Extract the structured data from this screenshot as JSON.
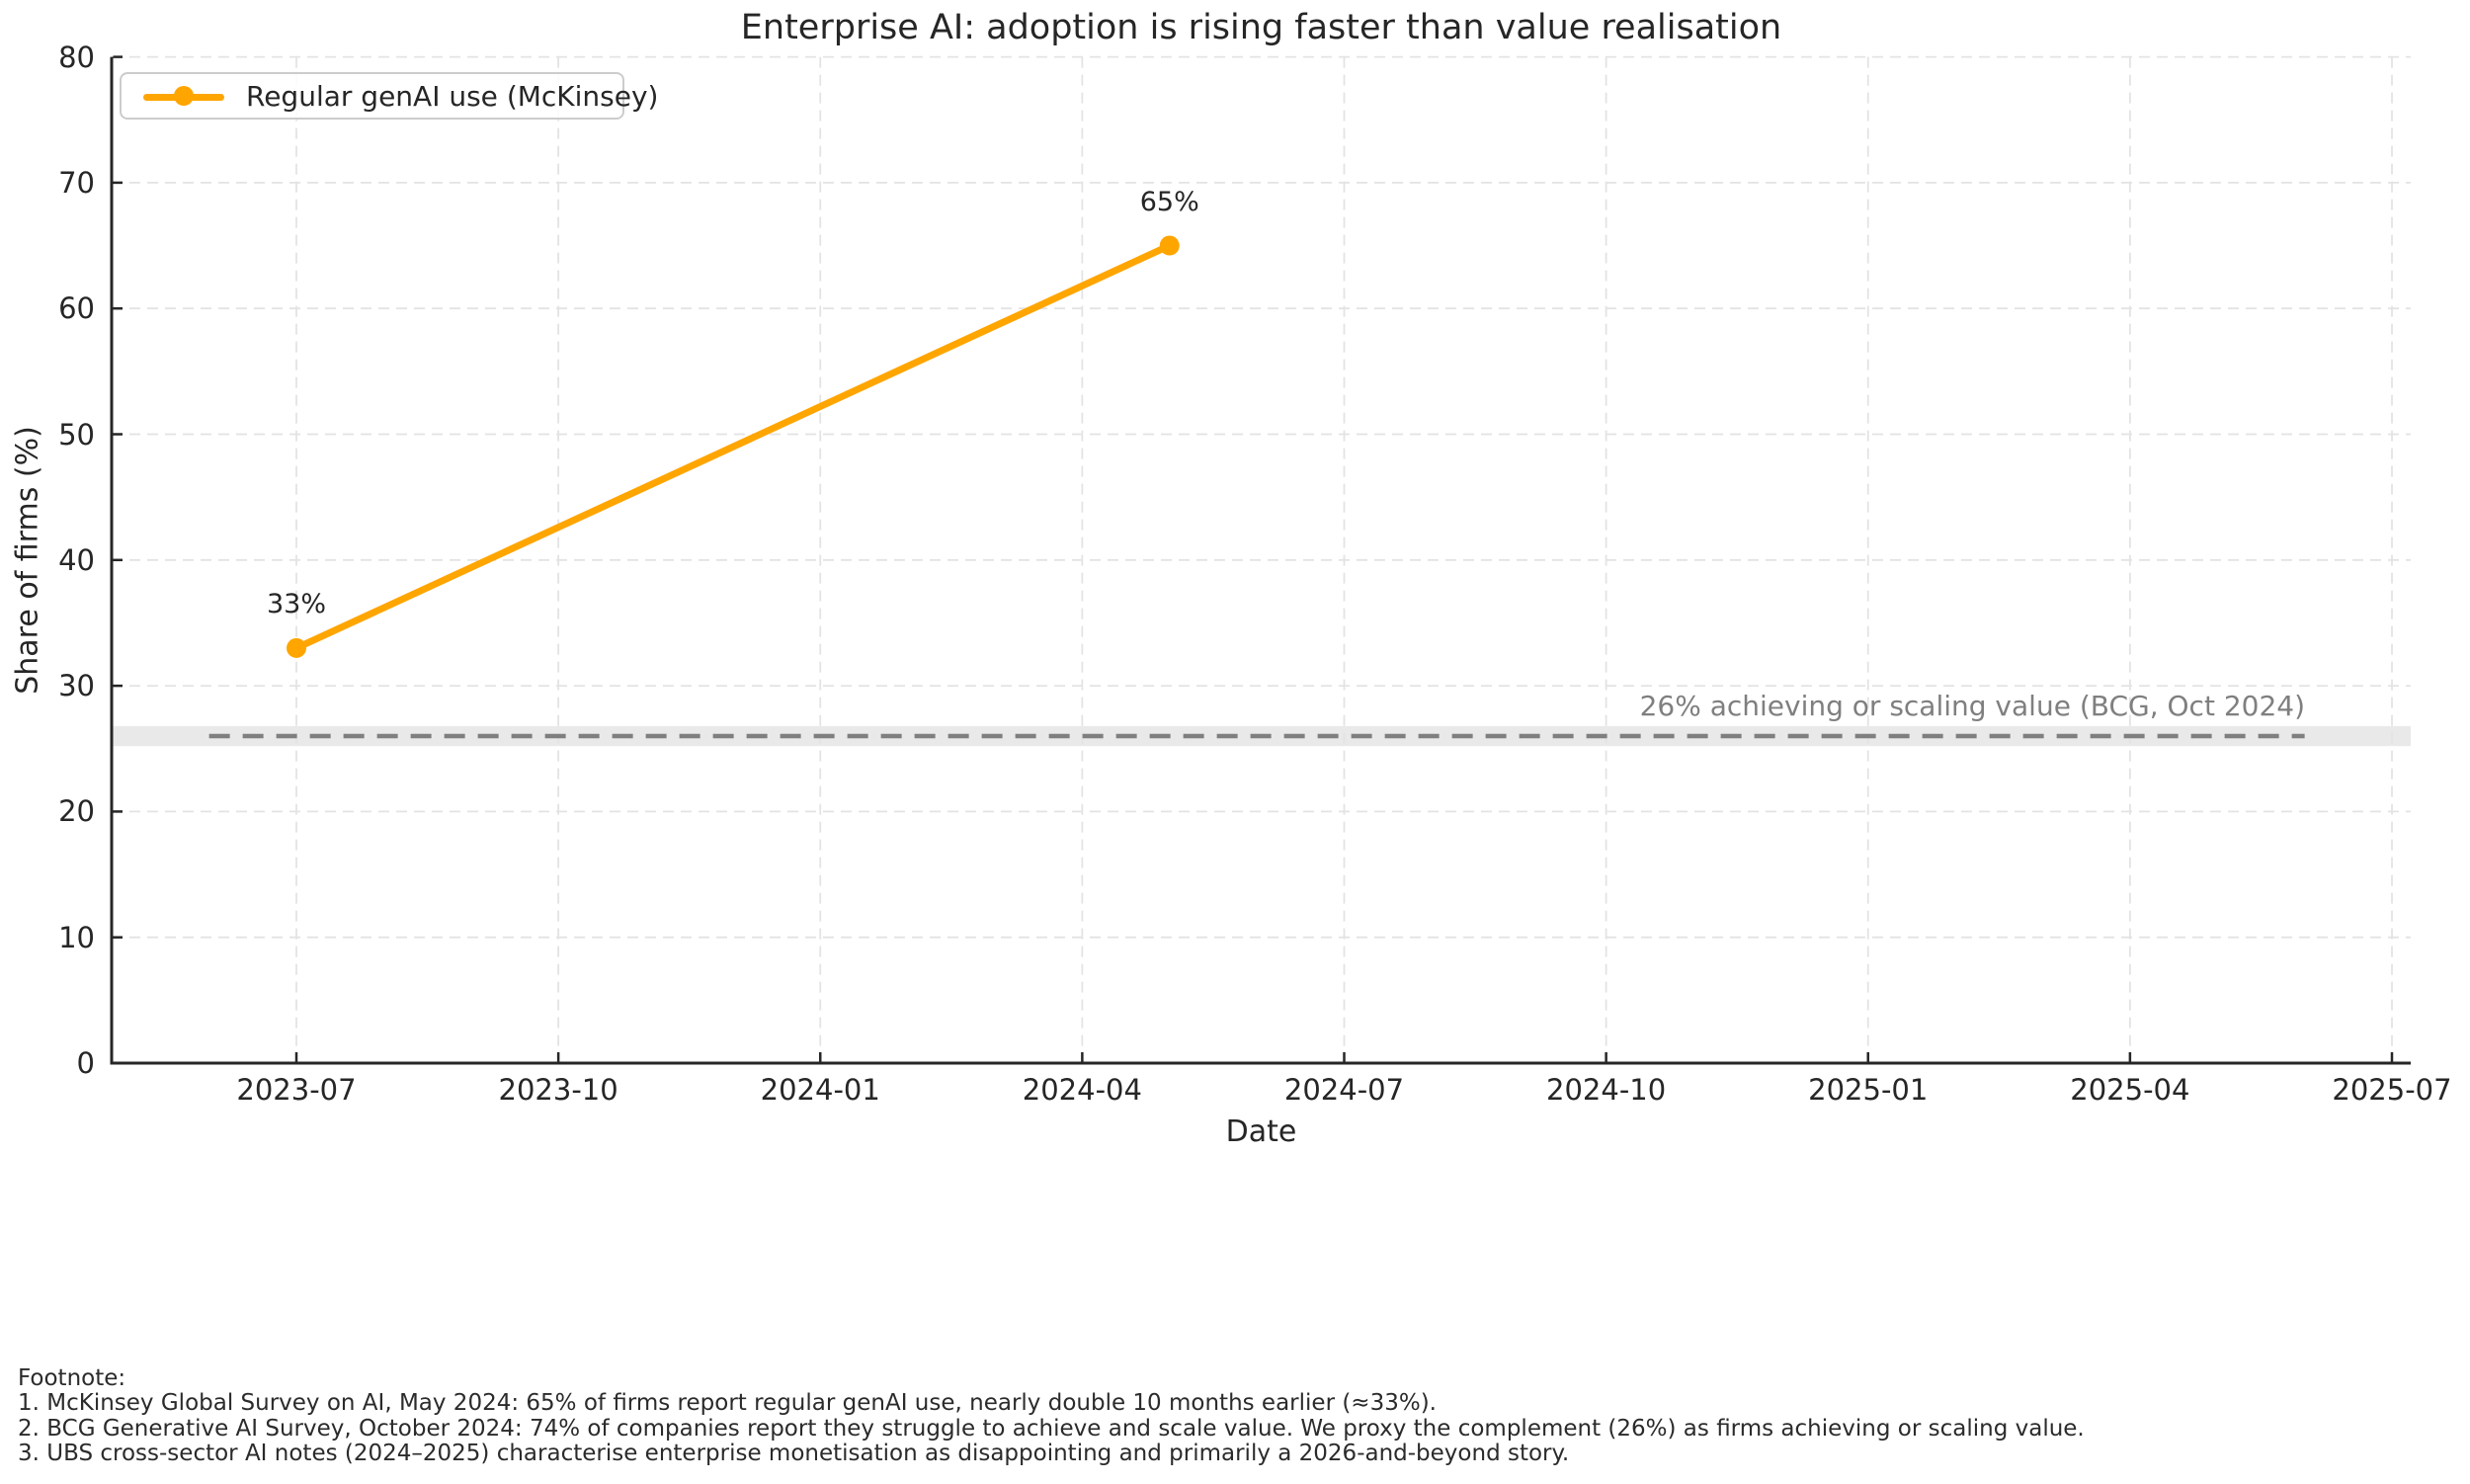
{
  "chart_data": {
    "type": "line",
    "title": "Enterprise AI: adoption is rising faster than value realisation",
    "xlabel": "Date",
    "ylabel": "Share of firms (%)",
    "ylim": [
      0,
      80
    ],
    "grid": "dashed",
    "legend_position": "upper left",
    "x_ticks": [
      "2023-07",
      "2023-10",
      "2024-01",
      "2024-04",
      "2024-07",
      "2024-10",
      "2025-01",
      "2025-04",
      "2025-07"
    ],
    "y_ticks": [
      0,
      10,
      20,
      30,
      40,
      50,
      60,
      70,
      80
    ],
    "series": [
      {
        "name": "Regular genAI use (McKinsey)",
        "color": "#FFA500",
        "x": [
          "2023-07",
          "2024-05"
        ],
        "values": [
          33,
          65
        ],
        "point_labels": [
          "33%",
          "65%"
        ]
      }
    ],
    "reference_line": {
      "value": 26,
      "x_start": "2023-06",
      "x_end": "2025-06",
      "style": "dashed",
      "color": "#7f7f7f",
      "label": "26% achieving or scaling value (BCG, Oct 2024)",
      "band": {
        "from": 25.2,
        "to": 26.8,
        "color": "#e9e9e9"
      }
    }
  },
  "footnote": {
    "heading": "Footnote:",
    "lines": [
      "1. McKinsey Global Survey on AI, May 2024: 65% of firms report regular genAI use, nearly double 10 months earlier (≈33%).",
      "2. BCG Generative AI Survey, October 2024: 74% of companies report they struggle to achieve and scale value. We proxy the complement (26%) as firms achieving or scaling value.",
      "3. UBS cross-sector AI notes (2024–2025) characterise enterprise monetisation as disappointing and primarily a 2026-and-beyond story."
    ]
  }
}
